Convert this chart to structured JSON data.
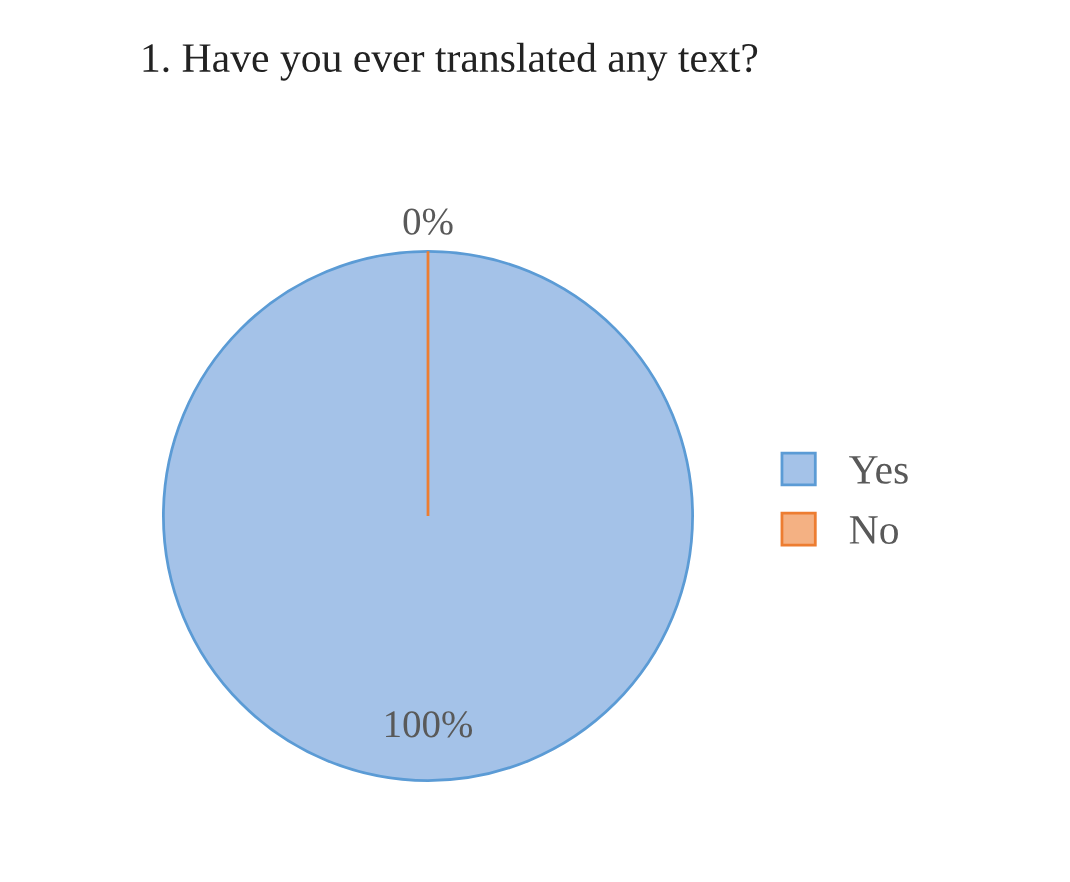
{
  "chart_data": {
    "type": "pie",
    "title": "1. Have you ever translated any text?",
    "categories": [
      "Yes",
      "No"
    ],
    "values": [
      100,
      0
    ],
    "colors": [
      "#a4c2e8",
      "#f4b183"
    ],
    "value_labels": [
      "100%",
      "0%"
    ],
    "legend": "right"
  }
}
